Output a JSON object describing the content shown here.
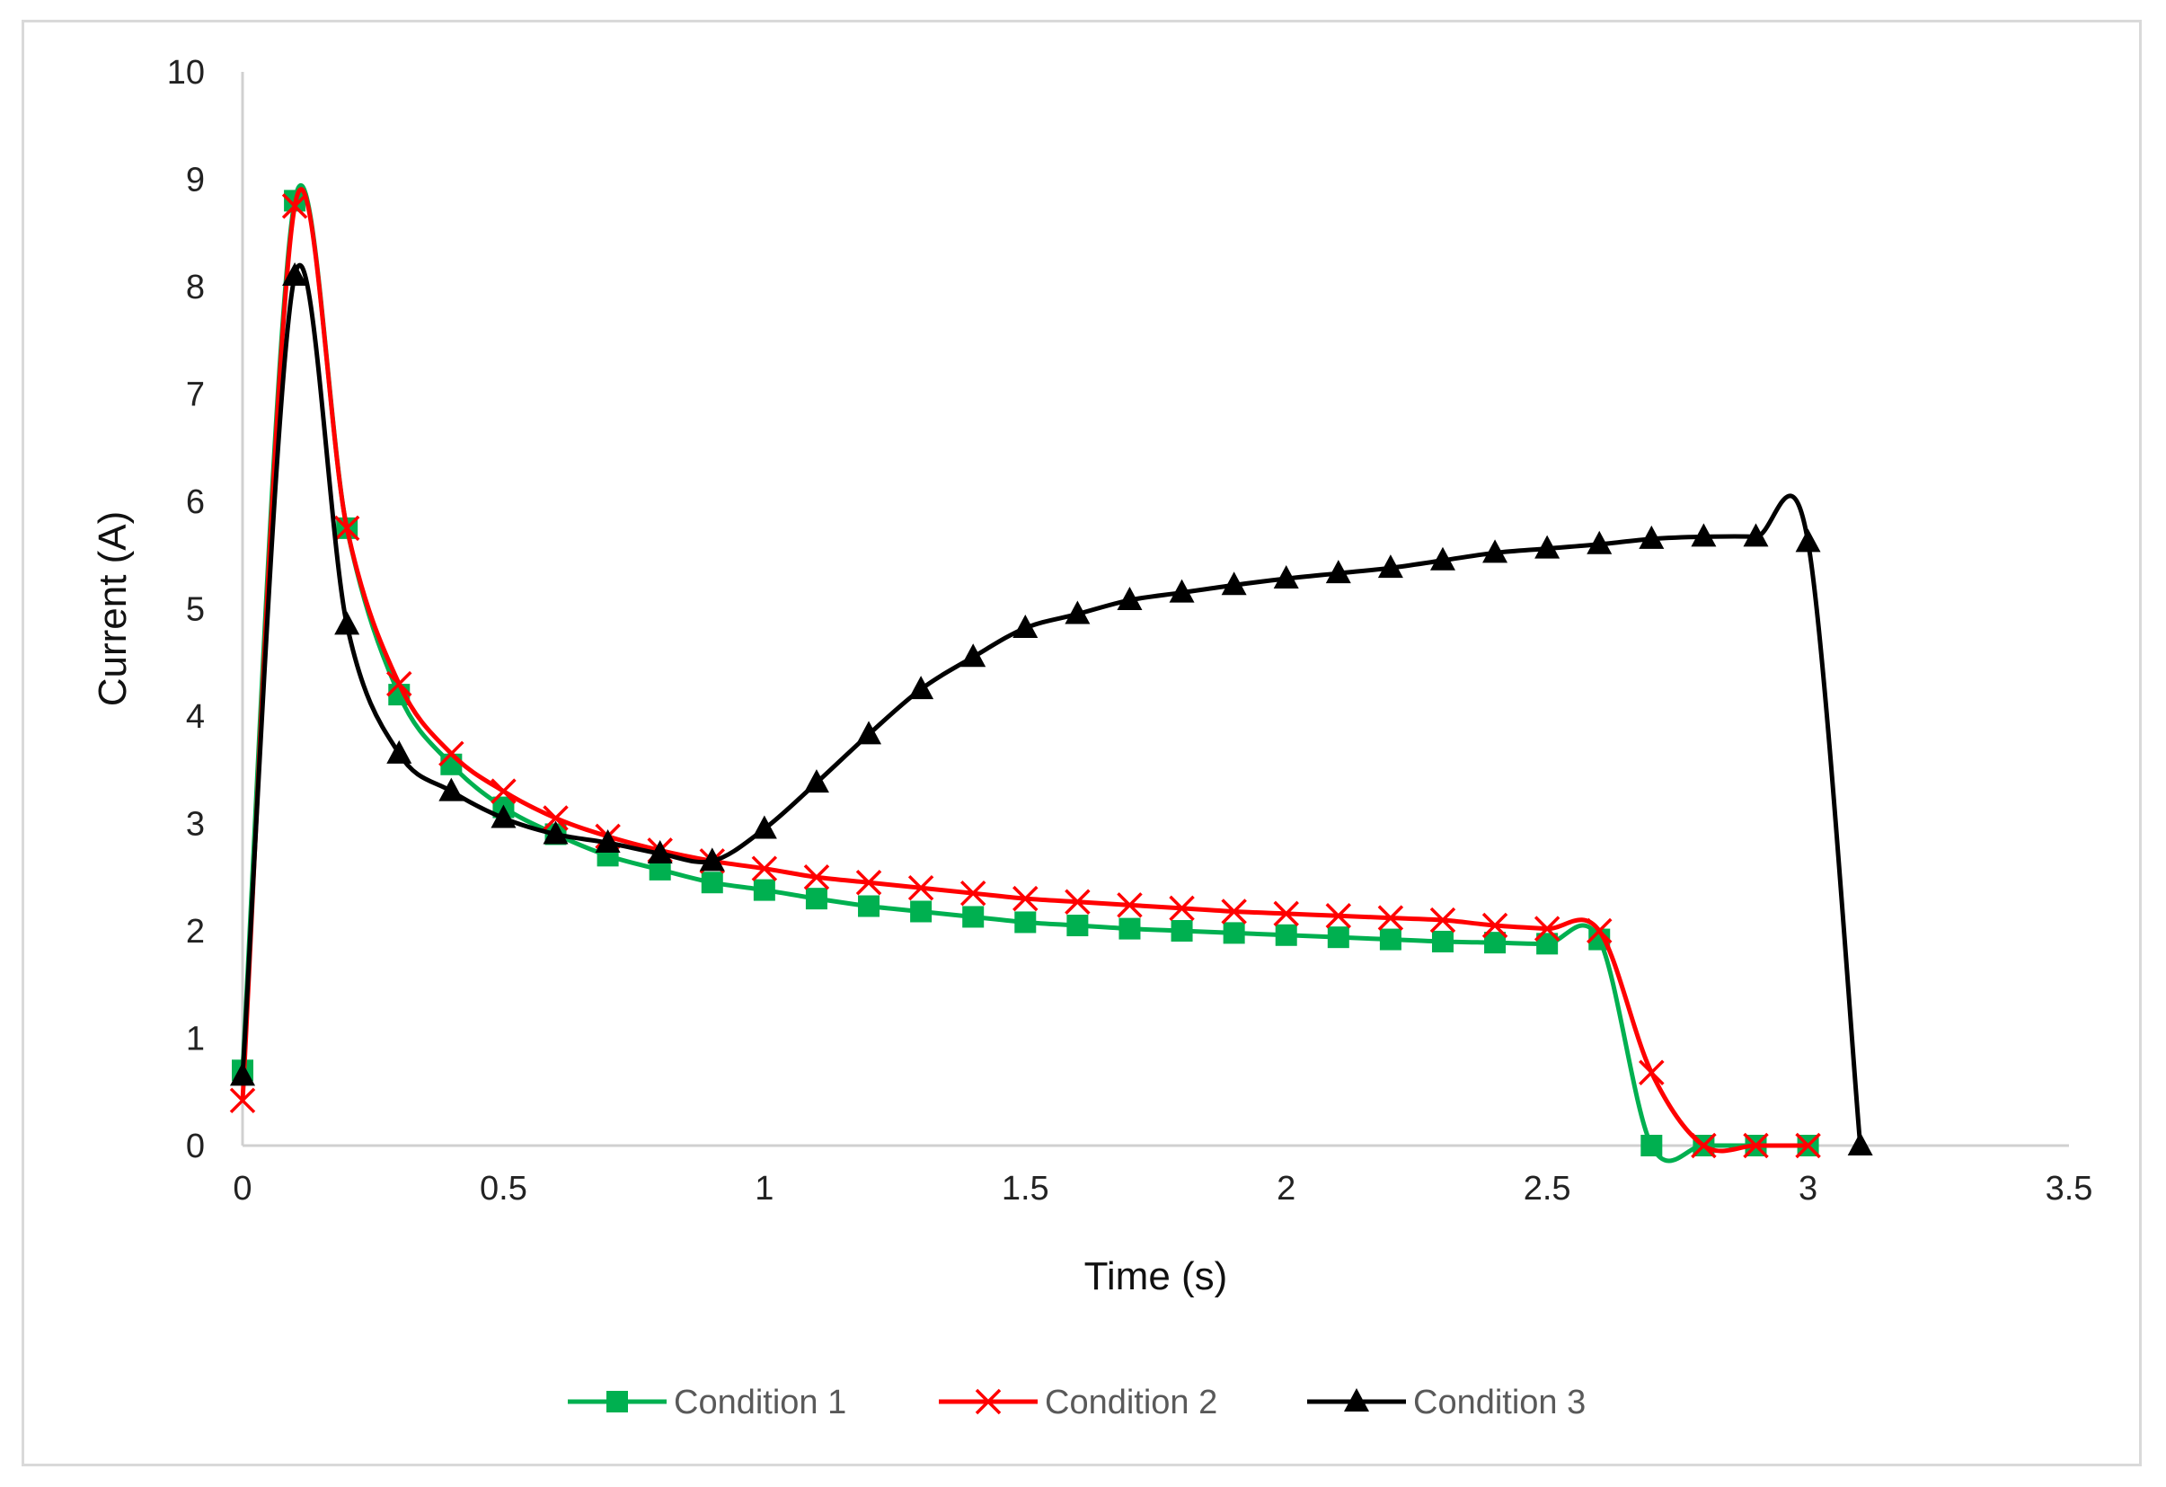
{
  "chart_data": {
    "type": "line",
    "title": "",
    "xlabel": "Time (s)",
    "ylabel": "Current (A)",
    "xlim": [
      0,
      3.5
    ],
    "ylim": [
      0,
      10
    ],
    "x_ticks": [
      "0",
      "0.5",
      "1",
      "1.5",
      "2",
      "2.5",
      "3",
      "3.5"
    ],
    "y_ticks": [
      "0",
      "1",
      "2",
      "3",
      "4",
      "5",
      "6",
      "7",
      "8",
      "9",
      "10"
    ],
    "grid": false,
    "legend_position": "bottom",
    "smooth": true,
    "series": [
      {
        "name": "Condition 1",
        "color": "#00b050",
        "marker": "square",
        "x": [
          0,
          0.1,
          0.2,
          0.3,
          0.4,
          0.5,
          0.6,
          0.7,
          0.8,
          0.9,
          1.0,
          1.1,
          1.2,
          1.3,
          1.4,
          1.5,
          1.6,
          1.7,
          1.8,
          1.9,
          2.0,
          2.1,
          2.2,
          2.3,
          2.4,
          2.5,
          2.6,
          2.7,
          2.8,
          2.9,
          3.0
        ],
        "y": [
          0.7,
          8.8,
          5.75,
          4.2,
          3.55,
          3.15,
          2.9,
          2.7,
          2.57,
          2.45,
          2.38,
          2.3,
          2.23,
          2.18,
          2.13,
          2.08,
          2.05,
          2.02,
          2.0,
          1.98,
          1.96,
          1.94,
          1.92,
          1.9,
          1.89,
          1.88,
          1.92,
          0.0,
          0.0,
          0.0,
          0.0
        ]
      },
      {
        "name": "Condition 2",
        "color": "#ff0000",
        "marker": "x",
        "x": [
          0,
          0.1,
          0.2,
          0.3,
          0.4,
          0.5,
          0.6,
          0.7,
          0.8,
          0.9,
          1.0,
          1.1,
          1.2,
          1.3,
          1.4,
          1.5,
          1.6,
          1.7,
          1.8,
          1.9,
          2.0,
          2.1,
          2.2,
          2.3,
          2.4,
          2.5,
          2.6,
          2.7,
          2.8,
          2.9,
          3.0
        ],
        "y": [
          0.42,
          8.75,
          5.75,
          4.3,
          3.65,
          3.3,
          3.05,
          2.88,
          2.75,
          2.65,
          2.58,
          2.5,
          2.45,
          2.4,
          2.35,
          2.3,
          2.27,
          2.24,
          2.21,
          2.18,
          2.16,
          2.14,
          2.12,
          2.1,
          2.05,
          2.02,
          2.0,
          0.68,
          0.0,
          0.0,
          0.0
        ]
      },
      {
        "name": "Condition 3",
        "color": "#000000",
        "marker": "triangle",
        "x": [
          0,
          0.1,
          0.2,
          0.3,
          0.4,
          0.5,
          0.6,
          0.7,
          0.8,
          0.9,
          1.0,
          1.1,
          1.2,
          1.3,
          1.4,
          1.5,
          1.6,
          1.7,
          1.8,
          1.9,
          2.0,
          2.1,
          2.2,
          2.3,
          2.4,
          2.5,
          2.6,
          2.7,
          2.8,
          2.9,
          3.0,
          3.1
        ],
        "y": [
          0.65,
          8.1,
          4.85,
          3.65,
          3.3,
          3.05,
          2.9,
          2.82,
          2.72,
          2.65,
          2.95,
          3.38,
          3.83,
          4.25,
          4.55,
          4.82,
          4.95,
          5.08,
          5.15,
          5.22,
          5.28,
          5.33,
          5.38,
          5.45,
          5.52,
          5.56,
          5.6,
          5.65,
          5.67,
          5.67,
          5.62,
          0.0
        ]
      }
    ]
  }
}
